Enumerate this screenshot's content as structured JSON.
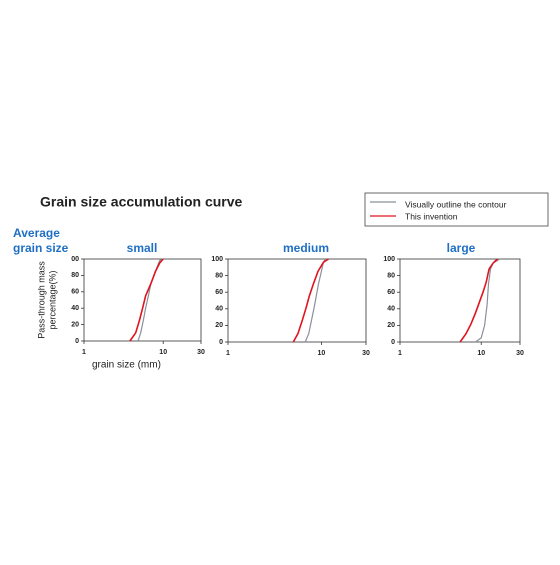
{
  "figure": {
    "title": "Grain size accumulation curve",
    "row_label": [
      "Average",
      "grain size"
    ],
    "ylabel": [
      "Pass-through mass",
      "percentage(%)"
    ],
    "xlabel": "grain size (mm)"
  },
  "chart_data": [
    {
      "type": "line",
      "title": "small",
      "xlog": true,
      "xlim": [
        1,
        30
      ],
      "ylim": [
        0,
        100
      ],
      "xticks": [
        1,
        10,
        30
      ],
      "yticks": [
        0,
        20,
        40,
        60,
        80,
        {
          "value": 100,
          "label": "00"
        }
      ],
      "series": [
        {
          "name": "Visually outline the contour",
          "color": "#8a8f9a",
          "x": [
            4.8,
            5.2,
            5.6,
            6,
            6.5,
            7,
            8,
            9,
            10
          ],
          "values": [
            0,
            10,
            25,
            40,
            55,
            70,
            85,
            98,
            100
          ]
        },
        {
          "name": "This invention",
          "color": "#e0141e",
          "x": [
            3.8,
            4.5,
            5,
            5.5,
            6,
            7,
            8,
            9,
            10
          ],
          "values": [
            0,
            10,
            25,
            40,
            55,
            70,
            85,
            95,
            100
          ]
        }
      ]
    },
    {
      "type": "line",
      "title": "medium",
      "xlog": true,
      "xlim": [
        1,
        30
      ],
      "ylim": [
        0,
        100
      ],
      "xticks": [
        1,
        10,
        30
      ],
      "yticks": [
        0,
        20,
        40,
        60,
        80,
        100
      ],
      "series": [
        {
          "name": "Visually outline the contour",
          "color": "#8a8f9a",
          "x": [
            6.7,
            7.3,
            7.8,
            8.3,
            8.8,
            9.3,
            10,
            10.5,
            11
          ],
          "values": [
            0,
            10,
            25,
            40,
            55,
            70,
            85,
            96,
            100
          ]
        },
        {
          "name": "This invention",
          "color": "#e0141e",
          "x": [
            5,
            5.6,
            6.2,
            6.8,
            7.4,
            8.2,
            9.2,
            10.5,
            11.9
          ],
          "values": [
            0,
            10,
            25,
            40,
            55,
            70,
            85,
            96,
            100
          ]
        }
      ]
    },
    {
      "type": "line",
      "title": "large",
      "xlog": true,
      "xlim": [
        1,
        30
      ],
      "ylim": [
        0,
        100
      ],
      "xticks": [
        1,
        10,
        30
      ],
      "yticks": [
        0,
        20,
        40,
        60,
        80,
        100
      ],
      "series": [
        {
          "name": "Visually outline the contour",
          "color": "#8a8f9a",
          "x": [
            8.5,
            10,
            11,
            11.8,
            12.3,
            13,
            14,
            17
          ],
          "values": [
            0,
            5,
            20,
            45,
            70,
            88,
            95,
            100
          ]
        },
        {
          "name": "This invention",
          "color": "#e0141e",
          "x": [
            5.5,
            6.5,
            7.5,
            8.5,
            9.5,
            10.5,
            11.5,
            12.5,
            14,
            15.8
          ],
          "values": [
            0,
            10,
            22,
            35,
            48,
            60,
            72,
            88,
            95,
            100
          ]
        }
      ]
    }
  ]
}
